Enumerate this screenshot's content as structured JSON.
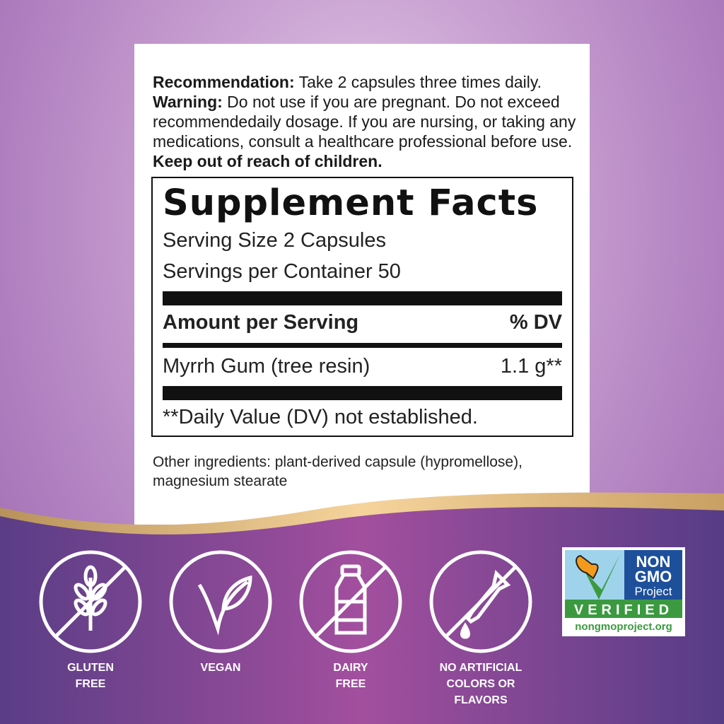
{
  "label": {
    "recommendation_label": "Recommendation:",
    "recommendation": " Take 2 capsules three times daily.",
    "warning_label": "Warning:",
    "warning": " Do not use if you are pregnant. Do not exceed recommendedaily dosage. If you are nursing, or taking any medications, consult a healthcare professional before use. ",
    "keep_away": "Keep out of reach of children.",
    "facts": {
      "title": "Supplement Facts",
      "serving_size": "Serving Size 2 Capsules",
      "servings_per_container": "Servings per Container 50",
      "amount_header": "Amount per Serving",
      "dv_header": "% DV",
      "ingredient_name": "Myrrh Gum (tree resin)",
      "ingredient_amount": "1.1 g**",
      "footnote": "**Daily Value (DV) not established."
    },
    "other_ingredients": "Other ingredients: plant-derived capsule (hypromellose), magnesium stearate"
  },
  "badges": [
    {
      "icon": "wheat-crossed-icon",
      "label": "GLUTEN\nFREE"
    },
    {
      "icon": "leaf-icon",
      "label": "VEGAN"
    },
    {
      "icon": "milk-bottle-crossed-icon",
      "label": "DAIRY\nFREE"
    },
    {
      "icon": "dropper-crossed-icon",
      "label": "NO ARTIFICIAL\nCOLORS OR\nFLAVORS"
    }
  ],
  "nongmo": {
    "line1": "NON",
    "line2": "GMO",
    "line3": "Project",
    "verified": "VERIFIED",
    "url": "nongmoproject.org"
  },
  "colors": {
    "purple_dark": "#5a3d86",
    "purple_mid": "#a24f9e",
    "gold": "#e8c48a"
  }
}
